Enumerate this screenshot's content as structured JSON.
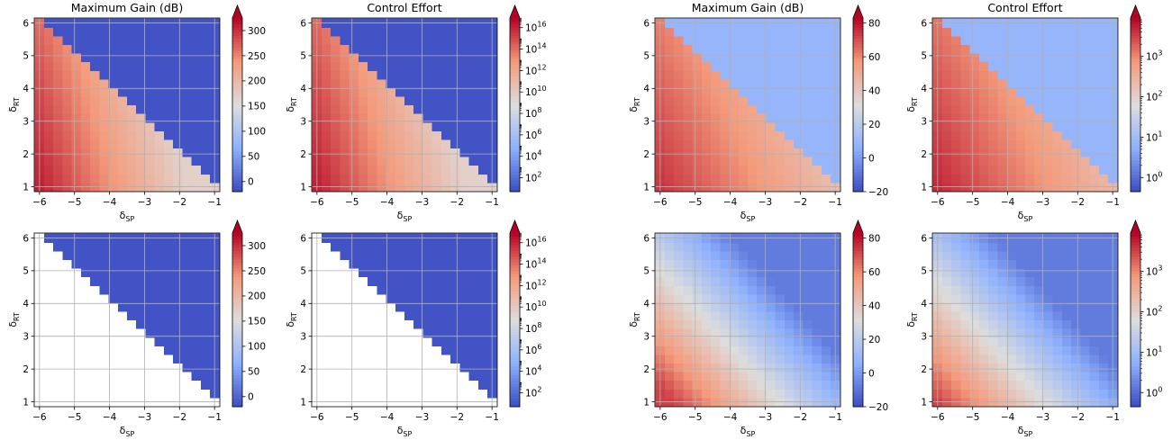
{
  "figure": {
    "panels": [
      {
        "id": "p1",
        "title": "Maximum Gain (dB)",
        "xlabel": "δ",
        "xlabel_sub": "SP",
        "ylabel": "δ",
        "ylabel_sub": "RT",
        "map": "tri",
        "fill": "colored",
        "metric": "gain"
      },
      {
        "id": "p2",
        "title": "Control Effort",
        "xlabel": "δ",
        "xlabel_sub": "SP",
        "ylabel": "δ",
        "ylabel_sub": "RT",
        "map": "tri",
        "fill": "colored",
        "metric": "effort"
      },
      {
        "id": "p3",
        "title": "Maximum Gain (dB)",
        "xlabel": "δ",
        "xlabel_sub": "SP",
        "ylabel": "δ",
        "ylabel_sub": "RT",
        "map": "tri",
        "fill": "colored",
        "metric": "gain"
      },
      {
        "id": "p4",
        "title": "Control Effort",
        "xlabel": "δ",
        "xlabel_sub": "SP",
        "ylabel": "δ",
        "ylabel_sub": "RT",
        "map": "tri",
        "fill": "colored",
        "metric": "effort"
      },
      {
        "id": "p5",
        "title": "",
        "xlabel": "δ",
        "xlabel_sub": "SP",
        "ylabel": "δ",
        "ylabel_sub": "RT",
        "map": "tri",
        "fill": "white",
        "metric": "gain"
      },
      {
        "id": "p6",
        "title": "",
        "xlabel": "δ",
        "xlabel_sub": "SP",
        "ylabel": "δ",
        "ylabel_sub": "RT",
        "map": "tri",
        "fill": "white",
        "metric": "effort"
      },
      {
        "id": "p7",
        "title": "",
        "xlabel": "δ",
        "xlabel_sub": "SP",
        "ylabel": "δ",
        "ylabel_sub": "RT",
        "map": "smooth",
        "fill": "colored",
        "metric": "gain"
      },
      {
        "id": "p8",
        "title": "",
        "xlabel": "δ",
        "xlabel_sub": "SP",
        "ylabel": "δ",
        "ylabel_sub": "RT",
        "map": "smooth",
        "fill": "colored",
        "metric": "effort"
      }
    ],
    "colorbars": [
      {
        "id": "cb1",
        "scale": "linear",
        "range": [
          -20,
          325
        ],
        "ticks": [
          "0",
          "50",
          "100",
          "150",
          "200",
          "250",
          "300"
        ],
        "tick_values": [
          0,
          50,
          100,
          150,
          200,
          250,
          300
        ],
        "extend": "max"
      },
      {
        "id": "cb2",
        "scale": "log",
        "range_exp": [
          0.7,
          16.9
        ],
        "ticks_base": "10",
        "tick_exponents": [
          "2",
          "4",
          "6",
          "8",
          "10",
          "12",
          "14",
          "16"
        ],
        "extend": "max"
      },
      {
        "id": "cb3",
        "scale": "linear",
        "range": [
          -20,
          83
        ],
        "ticks": [
          "−20",
          "0",
          "20",
          "40",
          "60",
          "80"
        ],
        "tick_values": [
          -20,
          0,
          20,
          40,
          60,
          80
        ],
        "extend": "max"
      },
      {
        "id": "cb4",
        "scale": "log",
        "range_exp": [
          -0.35,
          3.95
        ],
        "ticks_base": "10",
        "tick_exponents": [
          "0",
          "1",
          "2",
          "3"
        ],
        "extend": "max"
      },
      {
        "id": "cb5",
        "scale": "linear",
        "range": [
          -20,
          325
        ],
        "ticks": [
          "0",
          "50",
          "100",
          "150",
          "200",
          "250",
          "300"
        ],
        "tick_values": [
          0,
          50,
          100,
          150,
          200,
          250,
          300
        ],
        "extend": "max"
      },
      {
        "id": "cb6",
        "scale": "log",
        "range_exp": [
          0.7,
          16.9
        ],
        "ticks_base": "10",
        "tick_exponents": [
          "2",
          "4",
          "6",
          "8",
          "10",
          "12",
          "14",
          "16"
        ],
        "extend": "max"
      },
      {
        "id": "cb7",
        "scale": "linear",
        "range": [
          -20,
          83
        ],
        "ticks": [
          "−20",
          "0",
          "20",
          "40",
          "60",
          "80"
        ],
        "tick_values": [
          -20,
          0,
          20,
          40,
          60,
          80
        ],
        "extend": "max"
      },
      {
        "id": "cb8",
        "scale": "log",
        "range_exp": [
          -0.35,
          3.95
        ],
        "ticks_base": "10",
        "tick_exponents": [
          "0",
          "1",
          "2",
          "3"
        ],
        "extend": "max"
      }
    ]
  },
  "chart_data": [
    {
      "type": "heatmap",
      "title": "Maximum Gain (dB)",
      "xlabel": "δSP",
      "ylabel": "δRT",
      "xlim": [
        -6.15,
        -0.85
      ],
      "ylim": [
        0.85,
        6.15
      ],
      "x_ticks": [
        "−6",
        "−5",
        "−4",
        "−3",
        "−2",
        "−1"
      ],
      "y_ticks": [
        "1",
        "2",
        "3",
        "4",
        "5",
        "6"
      ],
      "grid": true,
      "colormap": "coolwarm",
      "colorbar": {
        "scale": "linear",
        "range": [
          -20,
          325
        ],
        "extend": "max"
      },
      "description_values": {
        "feasible_region": "δRT + δSP ≤ ~0",
        "max_value_approx": 315,
        "min_value_approx": -20
      }
    },
    {
      "type": "heatmap",
      "title": "Control Effort",
      "xlabel": "δSP",
      "ylabel": "δRT",
      "xlim": [
        -6.15,
        -0.85
      ],
      "ylim": [
        0.85,
        6.15
      ],
      "x_ticks": [
        "−6",
        "−5",
        "−4",
        "−3",
        "−2",
        "−1"
      ],
      "y_ticks": [
        "1",
        "2",
        "3",
        "4",
        "5",
        "6"
      ],
      "grid": true,
      "colormap": "coolwarm",
      "colorbar": {
        "scale": "log",
        "range": [
          5,
          8e+16
        ],
        "extend": "max"
      }
    },
    {
      "type": "heatmap",
      "title": "Maximum Gain (dB)",
      "xlabel": "δSP",
      "ylabel": "δRT",
      "xlim": [
        -6.15,
        -0.85
      ],
      "ylim": [
        0.85,
        6.15
      ],
      "x_ticks": [
        "−6",
        "−5",
        "−4",
        "−3",
        "−2",
        "−1"
      ],
      "y_ticks": [
        "1",
        "2",
        "3",
        "4",
        "5",
        "6"
      ],
      "grid": true,
      "colormap": "coolwarm",
      "colorbar": {
        "scale": "linear",
        "range": [
          -20,
          83
        ],
        "extend": "max"
      }
    },
    {
      "type": "heatmap",
      "title": "Control Effort",
      "xlabel": "δSP",
      "ylabel": "δRT",
      "xlim": [
        -6.15,
        -0.85
      ],
      "ylim": [
        0.85,
        6.15
      ],
      "x_ticks": [
        "−6",
        "−5",
        "−4",
        "−3",
        "−2",
        "−1"
      ],
      "y_ticks": [
        "1",
        "2",
        "3",
        "4",
        "5",
        "6"
      ],
      "grid": true,
      "colormap": "coolwarm",
      "colorbar": {
        "scale": "log",
        "range": [
          0.45,
          9000
        ],
        "extend": "max"
      }
    },
    {
      "type": "heatmap",
      "title": "",
      "xlabel": "δSP",
      "ylabel": "δRT",
      "xlim": [
        -6.15,
        -0.85
      ],
      "ylim": [
        0.85,
        6.15
      ],
      "grid": true,
      "colormap": "coolwarm",
      "colorbar": {
        "scale": "linear",
        "range": [
          -20,
          325
        ],
        "extend": "max"
      },
      "note_visual": "feasible triangle rendered white"
    },
    {
      "type": "heatmap",
      "title": "",
      "xlabel": "δSP",
      "ylabel": "δRT",
      "xlim": [
        -6.15,
        -0.85
      ],
      "ylim": [
        0.85,
        6.15
      ],
      "grid": true,
      "colormap": "coolwarm",
      "colorbar": {
        "scale": "log",
        "range": [
          5,
          8e+16
        ],
        "extend": "max"
      }
    },
    {
      "type": "heatmap",
      "title": "",
      "xlabel": "δSP",
      "ylabel": "δRT",
      "xlim": [
        -6.15,
        -0.85
      ],
      "ylim": [
        0.85,
        6.15
      ],
      "grid": true,
      "colormap": "coolwarm",
      "colorbar": {
        "scale": "linear",
        "range": [
          -20,
          83
        ],
        "extend": "max"
      }
    },
    {
      "type": "heatmap",
      "title": "",
      "xlabel": "δSP",
      "ylabel": "δRT",
      "xlim": [
        -6.15,
        -0.85
      ],
      "ylim": [
        0.85,
        6.15
      ],
      "grid": true,
      "colormap": "coolwarm",
      "colorbar": {
        "scale": "log",
        "range": [
          0.45,
          9000
        ],
        "extend": "max"
      }
    }
  ]
}
